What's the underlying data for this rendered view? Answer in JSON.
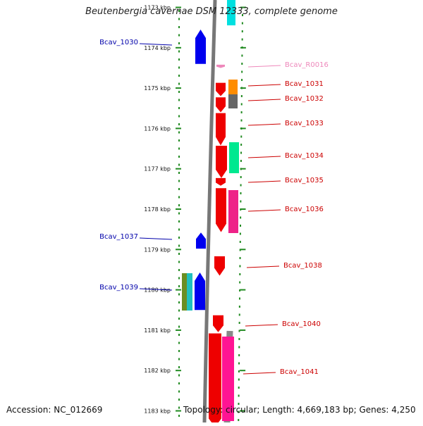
{
  "title": "Beutenbergia cavernae DSM 12333, complete genome",
  "footer": {
    "accession": "Accession: NC_012669",
    "topology": "Topology: circular; Length: 4,669,183 bp; Genes: 4,250"
  },
  "colors": {
    "ruler": "#228b22",
    "label_left": "#0000aa",
    "label_right": "#cc0000",
    "label_rna": "#ee88bb",
    "backbone": "#777777"
  },
  "kbp_ticks": [
    {
      "kbp": 1173,
      "label": "1173 kbp"
    },
    {
      "kbp": 1174,
      "label": "1174 kbp"
    },
    {
      "kbp": 1175,
      "label": "1175 kbp"
    },
    {
      "kbp": 1176,
      "label": "1176 kbp"
    },
    {
      "kbp": 1177,
      "label": "1177 kbp"
    },
    {
      "kbp": 1178,
      "label": "1178 kbp"
    },
    {
      "kbp": 1179,
      "label": "1179 kbp"
    },
    {
      "kbp": 1180,
      "label": "1180 kbp"
    },
    {
      "kbp": 1181,
      "label": "1181 kbp"
    },
    {
      "kbp": 1182,
      "label": "1182 kbp"
    },
    {
      "kbp": 1183,
      "label": "1183 kbp"
    }
  ],
  "genes": [
    {
      "name": "Bcav_1030",
      "side": "left",
      "strand": "+",
      "start": 1173.55,
      "end": 1174.4,
      "color": "#0000ee"
    },
    {
      "name": "Bcav_R0016",
      "side": "right",
      "strand": "-",
      "start": 1174.42,
      "end": 1174.5,
      "color": "#ee88bb"
    },
    {
      "name": "Bcav_1031",
      "side": "right",
      "strand": "-",
      "start": 1174.87,
      "end": 1175.2,
      "color": "#ee0000"
    },
    {
      "name": "Bcav_1032",
      "side": "right",
      "strand": "-",
      "start": 1175.23,
      "end": 1175.6,
      "color": "#ee0000"
    },
    {
      "name": "Bcav_1033",
      "side": "right",
      "strand": "-",
      "start": 1175.62,
      "end": 1176.42,
      "color": "#ee0000"
    },
    {
      "name": "Bcav_1034",
      "side": "right",
      "strand": "-",
      "start": 1176.43,
      "end": 1177.23,
      "color": "#ee0000"
    },
    {
      "name": "Bcav_1035",
      "side": "right",
      "strand": "-",
      "start": 1177.23,
      "end": 1177.42,
      "color": "#ee0000"
    },
    {
      "name": "Bcav_1036",
      "side": "right",
      "strand": "-",
      "start": 1177.48,
      "end": 1178.57,
      "color": "#ee0000"
    },
    {
      "name": "Bcav_1037",
      "side": "left",
      "strand": "+",
      "start": 1178.58,
      "end": 1178.98,
      "color": "#0000ee"
    },
    {
      "name": "Bcav_1038",
      "side": "right",
      "strand": "-",
      "start": 1179.17,
      "end": 1179.65,
      "color": "#ee0000"
    },
    {
      "name": "Bcav_1039",
      "side": "left",
      "strand": "+",
      "start": 1179.57,
      "end": 1180.5,
      "color": "#0000ee"
    },
    {
      "name": "Bcav_1040",
      "side": "right",
      "strand": "-",
      "start": 1180.63,
      "end": 1181.05,
      "color": "#ee0000"
    },
    {
      "name": "Bcav_1041",
      "side": "right",
      "strand": "-",
      "start": 1181.08,
      "end": 1183.4,
      "color": "#ee0000"
    }
  ]
}
